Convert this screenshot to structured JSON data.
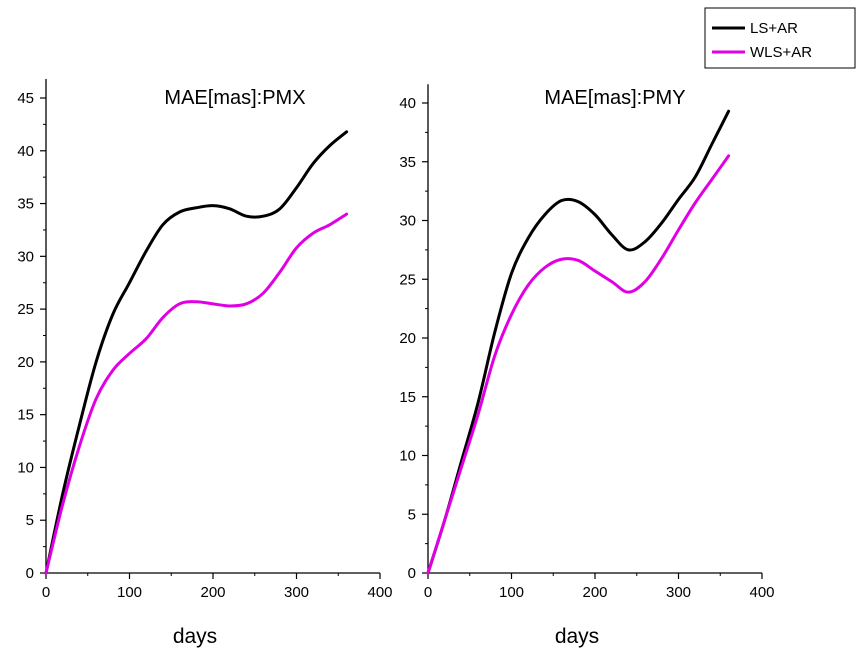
{
  "chart_data": [
    {
      "type": "line",
      "title": "MAE[mas]:PMX",
      "xlabel": "days",
      "ylabel": "",
      "xlim": [
        0,
        400
      ],
      "ylim": [
        0,
        45
      ],
      "xticks": [
        0,
        100,
        200,
        300,
        400
      ],
      "yticks": [
        0,
        5,
        10,
        15,
        20,
        25,
        30,
        35,
        40,
        45
      ],
      "grid": false,
      "series": [
        {
          "name": "LS+AR",
          "color": "#000000",
          "x": [
            0,
            20,
            40,
            60,
            80,
            100,
            120,
            140,
            160,
            180,
            200,
            220,
            240,
            260,
            280,
            300,
            320,
            340,
            360
          ],
          "y": [
            0,
            7.5,
            14,
            20,
            24.5,
            27.5,
            30.5,
            33,
            34.2,
            34.6,
            34.8,
            34.5,
            33.8,
            33.8,
            34.5,
            36.5,
            38.8,
            40.5,
            41.8
          ]
        },
        {
          "name": "WLS+AR",
          "color": "#e100e6",
          "x": [
            0,
            20,
            40,
            60,
            80,
            100,
            120,
            140,
            160,
            180,
            200,
            220,
            240,
            260,
            280,
            300,
            320,
            340,
            360
          ],
          "y": [
            0,
            6.5,
            12,
            16.5,
            19.2,
            20.8,
            22.2,
            24.2,
            25.5,
            25.7,
            25.5,
            25.3,
            25.5,
            26.5,
            28.5,
            30.8,
            32.2,
            33,
            34
          ]
        }
      ]
    },
    {
      "type": "line",
      "title": "MAE[mas]:PMY",
      "xlabel": "days",
      "ylabel": "",
      "xlim": [
        0,
        400
      ],
      "ylim": [
        0,
        40
      ],
      "xticks": [
        0,
        100,
        200,
        300,
        400
      ],
      "yticks": [
        0,
        5,
        10,
        15,
        20,
        25,
        30,
        35,
        40
      ],
      "grid": false,
      "series": [
        {
          "name": "LS+AR",
          "color": "#000000",
          "x": [
            0,
            20,
            40,
            60,
            80,
            100,
            120,
            140,
            160,
            180,
            200,
            220,
            240,
            260,
            280,
            300,
            320,
            340,
            360
          ],
          "y": [
            0,
            4.5,
            9.5,
            14.5,
            20.5,
            25.5,
            28.5,
            30.5,
            31.7,
            31.6,
            30.5,
            28.8,
            27.5,
            28.2,
            29.8,
            31.8,
            33.7,
            36.5,
            39.3
          ]
        },
        {
          "name": "WLS+AR",
          "color": "#e100e6",
          "x": [
            0,
            20,
            40,
            60,
            80,
            100,
            120,
            140,
            160,
            180,
            200,
            220,
            240,
            260,
            280,
            300,
            320,
            340,
            360
          ],
          "y": [
            0,
            4.5,
            9,
            13.5,
            18.5,
            22,
            24.5,
            26,
            26.7,
            26.6,
            25.7,
            24.8,
            23.9,
            24.8,
            26.8,
            29.2,
            31.5,
            33.5,
            35.5
          ]
        }
      ]
    }
  ],
  "legend": {
    "position": "top-right",
    "entries": [
      {
        "label": "LS+AR",
        "color": "#000000"
      },
      {
        "label": "WLS+AR",
        "color": "#e100e6"
      }
    ]
  }
}
